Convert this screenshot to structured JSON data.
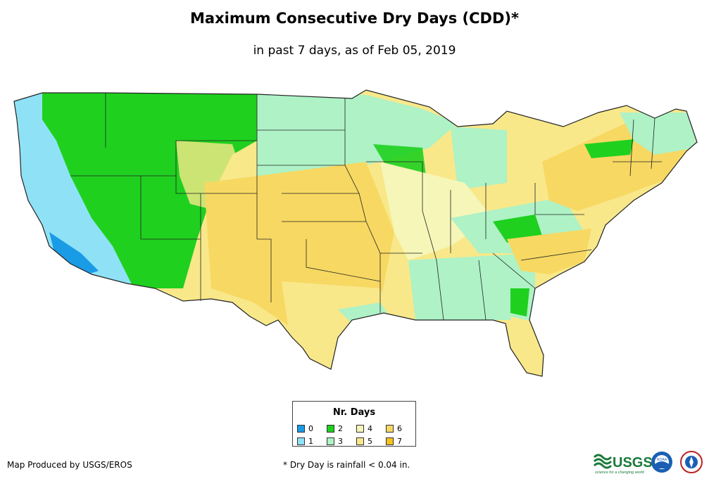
{
  "title": "Maximum Consecutive Dry Days (CDD)*",
  "subtitle": "in past 7 days, as of Feb 05, 2019",
  "legend": {
    "title": "Nr. Days",
    "items": [
      {
        "label": "0",
        "color": "#1a9be6"
      },
      {
        "label": "2",
        "color": "#1fd01f"
      },
      {
        "label": "4",
        "color": "#f6f6b8"
      },
      {
        "label": "6",
        "color": "#f7d862"
      },
      {
        "label": "1",
        "color": "#8fe2f6"
      },
      {
        "label": "3",
        "color": "#aef2c6"
      },
      {
        "label": "5",
        "color": "#f8e88a"
      },
      {
        "label": "7",
        "color": "#f4c21a"
      }
    ]
  },
  "credit": "Map Produced by USGS/EROS",
  "footnote": "* Dry Day is rainfall < 0.04 in.",
  "logos": {
    "usgs_text": "USGS",
    "usgs_tagline": "science for a changing world",
    "noaa_text": "NOAA"
  }
}
